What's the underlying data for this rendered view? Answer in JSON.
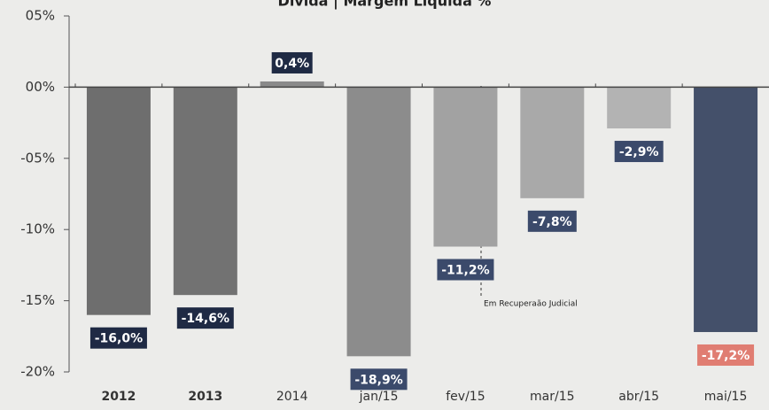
{
  "chart_data": {
    "type": "bar",
    "title": "Dívida | Margem Líquida %",
    "categories": [
      "2012",
      "2013",
      "2014",
      "jan/15",
      "fev/15",
      "mar/15",
      "abr/15",
      "mai/15"
    ],
    "values": [
      -16.0,
      -14.6,
      0.4,
      -18.9,
      -11.2,
      -7.8,
      -2.9,
      -17.2
    ],
    "value_labels": [
      "-16,0%",
      "-14,6%",
      "0,4%",
      "-18,9%",
      "-11,2%",
      "-7,8%",
      "-2,9%",
      "-17,2%"
    ],
    "colors": [
      "#6e6e6e",
      "#727272",
      "#8a8a8a",
      "#8c8c8c",
      "#a2a2a2",
      "#a9a9a9",
      "#b3b3b3",
      "#44506a"
    ],
    "label_colors": [
      "#1f2a44",
      "#1f2a44",
      "#1f2a44",
      "#3b4a6b",
      "#3b4a6b",
      "#3b4a6b",
      "#3b4a6b",
      "#e07d72"
    ],
    "ylim": [
      -20,
      5
    ],
    "yticks": [
      {
        "value": 5,
        "label": "05%"
      },
      {
        "value": 0,
        "label": "00%"
      },
      {
        "value": -5,
        "label": "-05%"
      },
      {
        "value": -10,
        "label": "-10%"
      },
      {
        "value": -15,
        "label": "-15%"
      },
      {
        "value": -20,
        "label": "-20%"
      }
    ],
    "annotation": "Em Recuperaão Judicial"
  }
}
